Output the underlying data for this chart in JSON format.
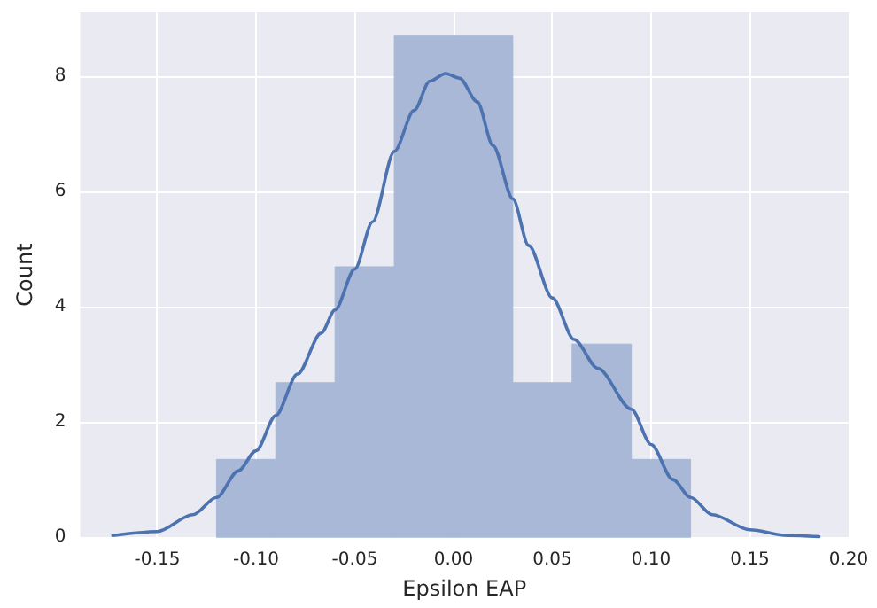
{
  "chart_data": {
    "type": "histogram",
    "xlabel": "Epsilon EAP",
    "ylabel": "Count",
    "bins": [
      -0.12,
      -0.09,
      -0.06,
      -0.03,
      0.0,
      0.03,
      0.06,
      0.09,
      0.12
    ],
    "series": [
      {
        "color": "#a8b8d6",
        "values": [
          1.35,
          2.68,
          4.69,
          8.69,
          8.69,
          2.68,
          3.35,
          1.35
        ]
      },
      {
        "type": "line",
        "color": "#4c72b0",
        "x": [
          -0.1725,
          -0.15,
          -0.132,
          -0.12,
          -0.109,
          -0.1,
          -0.09,
          -0.079,
          -0.067,
          -0.06,
          -0.05,
          -0.041,
          -0.03,
          -0.02,
          -0.012,
          -0.004,
          0.003,
          0.012,
          0.02,
          0.03,
          0.038,
          0.05,
          0.061,
          0.073,
          0.09,
          0.1,
          0.111,
          0.12,
          0.131,
          0.15,
          0.169,
          0.185
        ],
        "values": [
          0.03,
          0.1,
          0.39,
          0.69,
          1.15,
          1.5,
          2.11,
          2.83,
          3.54,
          3.94,
          4.65,
          5.47,
          6.69,
          7.4,
          7.91,
          8.04,
          7.96,
          7.55,
          6.79,
          5.87,
          5.06,
          4.15,
          3.43,
          2.93,
          2.22,
          1.61,
          1.0,
          0.69,
          0.39,
          0.13,
          0.03,
          0.01
        ]
      }
    ],
    "xlim": [
      -0.189,
      0.2
    ],
    "ylim": [
      0,
      9.1
    ],
    "xticks": [
      {
        "value": -0.15,
        "label": "-0.15"
      },
      {
        "value": -0.1,
        "label": "-0.10"
      },
      {
        "value": -0.05,
        "label": "-0.05"
      },
      {
        "value": 0,
        "label": "0.00"
      },
      {
        "value": 0.05,
        "label": "0.05"
      },
      {
        "value": 0.1,
        "label": "0.10"
      },
      {
        "value": 0.15,
        "label": "0.15"
      },
      {
        "value": 0.2,
        "label": "0.20"
      }
    ],
    "yticks": [
      0,
      2,
      4,
      6,
      8
    ],
    "grid": true,
    "marker": "none"
  }
}
